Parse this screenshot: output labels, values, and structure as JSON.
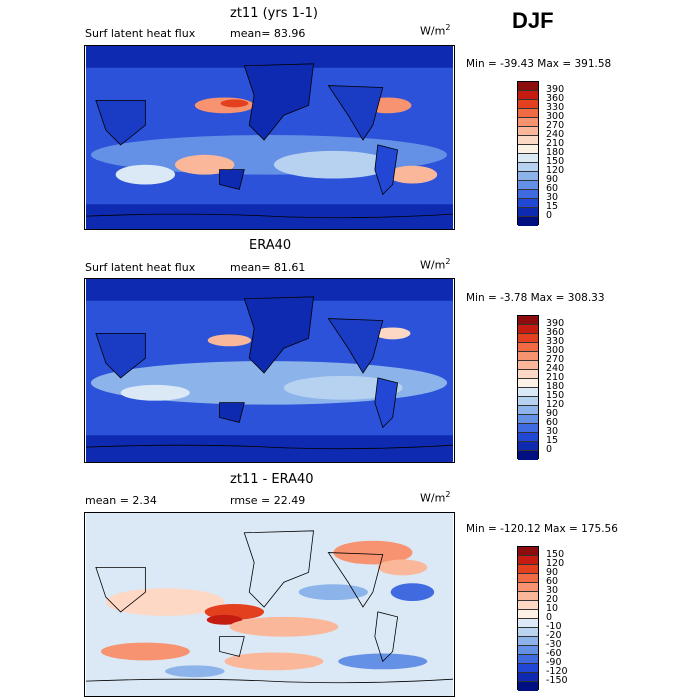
{
  "season": "DJF",
  "panels": [
    {
      "title": "zt11 (yrs 1-1)",
      "left_label": "Surf latent heat flux",
      "stat_text": "mean=  83.96",
      "unit_base": "W/m",
      "unit_exp": "2",
      "minmax": "Min = -39.43 Max = 391.58",
      "colorbar": {
        "labels": [
          "390",
          "360",
          "330",
          "300",
          "270",
          "240",
          "210",
          "180",
          "150",
          "120",
          "90",
          "60",
          "30",
          "15",
          "0"
        ],
        "colors": [
          "#8c0d0d",
          "#c41c10",
          "#e2401f",
          "#f06a44",
          "#f79371",
          "#fbb79a",
          "#fdd8c4",
          "#fdf1e6",
          "#dbe9f6",
          "#b7d2f0",
          "#8db4ea",
          "#6490e6",
          "#3f6ae0",
          "#2147d4",
          "#0d2ab0",
          "#001080"
        ]
      }
    },
    {
      "title": "ERA40",
      "left_label": "Surf latent heat flux",
      "stat_text": "mean=  81.61",
      "unit_base": "W/m",
      "unit_exp": "2",
      "minmax": "Min =  -3.78 Max = 308.33",
      "colorbar": {
        "labels": [
          "390",
          "360",
          "330",
          "300",
          "270",
          "240",
          "210",
          "180",
          "150",
          "120",
          "90",
          "60",
          "30",
          "15",
          "0"
        ],
        "colors": [
          "#8c0d0d",
          "#c41c10",
          "#e2401f",
          "#f06a44",
          "#f79371",
          "#fbb79a",
          "#fdd8c4",
          "#fdf1e6",
          "#dbe9f6",
          "#b7d2f0",
          "#8db4ea",
          "#6490e6",
          "#3f6ae0",
          "#2147d4",
          "#0d2ab0",
          "#001080"
        ]
      }
    },
    {
      "title": "zt11 - ERA40",
      "left_label": "mean =   2.34",
      "stat_text": "rmse =  22.49",
      "unit_base": "W/m",
      "unit_exp": "2",
      "minmax": "Min = -120.12 Max = 175.56",
      "colorbar": {
        "labels": [
          "150",
          "120",
          "90",
          "60",
          "30",
          "20",
          "10",
          "0",
          "-10",
          "-20",
          "-30",
          "-60",
          "-90",
          "-120",
          "-150"
        ],
        "colors": [
          "#8c0d0d",
          "#c41c10",
          "#e2401f",
          "#f06a44",
          "#f79371",
          "#fbb79a",
          "#fdd8c4",
          "#fdf1e6",
          "#dde9f6",
          "#b9d3f0",
          "#8db4ea",
          "#6490e6",
          "#3f6ae0",
          "#2147d4",
          "#0d2ab0",
          "#001080"
        ]
      }
    }
  ],
  "colors": {
    "field_deep": "#1f3fd0",
    "field_mid": "#3a66e0",
    "field_light": "#9cbdf0",
    "field_pale": "#dbe9f6",
    "field_warm": "#f79371",
    "field_hot": "#e2401f",
    "coast": "#000000"
  }
}
